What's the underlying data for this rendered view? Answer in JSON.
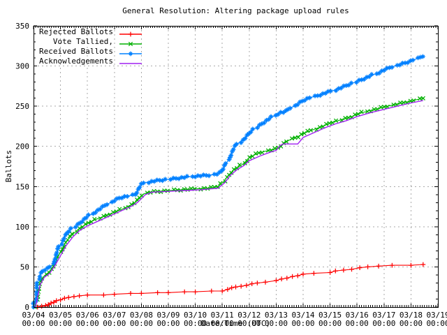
{
  "title": "General Resolution: Altering package upload rules",
  "axes": {
    "y_label": "Ballots",
    "x_label": "Date/Time (UTC)",
    "y_ticks": [
      0,
      50,
      100,
      150,
      200,
      250,
      300,
      350
    ],
    "y_max": 350,
    "x_days": 15,
    "x_tick_dates": [
      "03/04",
      "03/05",
      "03/06",
      "03/07",
      "03/08",
      "03/09",
      "03/10",
      "03/11",
      "03/12",
      "03/13",
      "03/14",
      "03/15",
      "03/16",
      "03/17",
      "03/18",
      "03/19"
    ],
    "x_tick_time": "00:00"
  },
  "colors": {
    "background": "#ffffff",
    "border": "#000000",
    "grid": "#aaaaaa",
    "text": "#000000",
    "rejected": "#ff0000",
    "tallied": "#00b000",
    "received": "#0080ff",
    "acknowledgements": "#a020f0"
  },
  "legend": {
    "items": [
      {
        "label": "Rejected Ballots",
        "marker": "plus",
        "color": "#ff0000"
      },
      {
        "label": "Vote Tallied,",
        "marker": "cross",
        "color": "#00b000"
      },
      {
        "label": "Received Ballots",
        "marker": "asterisk",
        "color": "#0080ff"
      },
      {
        "label": "Acknowledgements",
        "marker": "none",
        "color": "#a020f0"
      }
    ]
  },
  "chart_data": {
    "type": "line",
    "title": "General Resolution: Altering package upload rules",
    "xlabel": "Date/Time (UTC)",
    "ylabel": "Ballots",
    "x_unit": "days since 03/04 00:00 UTC",
    "x_range_dates": [
      "03/04",
      "03/19"
    ],
    "ylim": [
      0,
      350
    ],
    "grid": true,
    "legend_position": "top-left",
    "series": [
      {
        "name": "Rejected Ballots",
        "color": "#ff0000",
        "marker": "plus",
        "final_value": 53,
        "points": [
          [
            0.15,
            0
          ],
          [
            0.3,
            1
          ],
          [
            0.45,
            2
          ],
          [
            0.55,
            3
          ],
          [
            0.65,
            5
          ],
          [
            0.75,
            6
          ],
          [
            0.85,
            8
          ],
          [
            1.0,
            9
          ],
          [
            1.15,
            11
          ],
          [
            1.3,
            12
          ],
          [
            1.5,
            13
          ],
          [
            1.7,
            14
          ],
          [
            2.0,
            15
          ],
          [
            2.6,
            15
          ],
          [
            3.0,
            16
          ],
          [
            3.6,
            17
          ],
          [
            4.0,
            17
          ],
          [
            4.6,
            18
          ],
          [
            5.0,
            18
          ],
          [
            5.6,
            19
          ],
          [
            6.0,
            19
          ],
          [
            6.6,
            20
          ],
          [
            7.0,
            20
          ],
          [
            7.2,
            22
          ],
          [
            7.35,
            24
          ],
          [
            7.5,
            25
          ],
          [
            7.7,
            26
          ],
          [
            7.9,
            27
          ],
          [
            8.1,
            29
          ],
          [
            8.3,
            30
          ],
          [
            8.6,
            31
          ],
          [
            9.0,
            33
          ],
          [
            9.2,
            35
          ],
          [
            9.4,
            36
          ],
          [
            9.6,
            38
          ],
          [
            9.8,
            39
          ],
          [
            10.0,
            41
          ],
          [
            10.4,
            42
          ],
          [
            11.0,
            43
          ],
          [
            11.2,
            45
          ],
          [
            11.5,
            46
          ],
          [
            11.8,
            47
          ],
          [
            12.1,
            49
          ],
          [
            12.4,
            50
          ],
          [
            12.8,
            51
          ],
          [
            13.3,
            52
          ],
          [
            14.0,
            52
          ],
          [
            14.45,
            53
          ]
        ]
      },
      {
        "name": "Vote Tallied,",
        "color": "#00b000",
        "marker": "cross",
        "final_value": 260,
        "points": [
          [
            0.05,
            0
          ],
          [
            0.1,
            8
          ],
          [
            0.18,
            20
          ],
          [
            0.28,
            32
          ],
          [
            0.4,
            39
          ],
          [
            0.55,
            43
          ],
          [
            0.7,
            48
          ],
          [
            0.85,
            58
          ],
          [
            1.0,
            69
          ],
          [
            1.15,
            78
          ],
          [
            1.3,
            85
          ],
          [
            1.5,
            92
          ],
          [
            1.7,
            98
          ],
          [
            2.0,
            104
          ],
          [
            2.3,
            109
          ],
          [
            2.7,
            114
          ],
          [
            3.0,
            118
          ],
          [
            3.3,
            122
          ],
          [
            3.6,
            127
          ],
          [
            3.8,
            131
          ],
          [
            3.95,
            136
          ],
          [
            4.1,
            141
          ],
          [
            4.3,
            143
          ],
          [
            4.7,
            144
          ],
          [
            5.0,
            145
          ],
          [
            5.5,
            146
          ],
          [
            6.0,
            147
          ],
          [
            6.5,
            148
          ],
          [
            6.85,
            150
          ],
          [
            7.05,
            156
          ],
          [
            7.2,
            163
          ],
          [
            7.4,
            170
          ],
          [
            7.6,
            174
          ],
          [
            7.8,
            179
          ],
          [
            8.0,
            186
          ],
          [
            8.3,
            191
          ],
          [
            8.6,
            194
          ],
          [
            9.0,
            197
          ],
          [
            9.2,
            201
          ],
          [
            9.4,
            206
          ],
          [
            9.6,
            210
          ],
          [
            9.8,
            212
          ],
          [
            10.0,
            216
          ],
          [
            10.4,
            221
          ],
          [
            10.8,
            226
          ],
          [
            11.0,
            229
          ],
          [
            11.4,
            233
          ],
          [
            11.8,
            237
          ],
          [
            12.0,
            240
          ],
          [
            12.4,
            244
          ],
          [
            12.8,
            247
          ],
          [
            13.0,
            249
          ],
          [
            13.4,
            252
          ],
          [
            13.8,
            255
          ],
          [
            14.0,
            256
          ],
          [
            14.2,
            258
          ],
          [
            14.45,
            260
          ]
        ]
      },
      {
        "name": "Received Ballots",
        "color": "#0080ff",
        "marker": "asterisk",
        "final_value": 313,
        "points": [
          [
            0,
            0
          ],
          [
            0.05,
            6
          ],
          [
            0.1,
            16
          ],
          [
            0.15,
            28
          ],
          [
            0.2,
            38
          ],
          [
            0.3,
            44
          ],
          [
            0.45,
            47
          ],
          [
            0.6,
            49
          ],
          [
            0.7,
            53
          ],
          [
            0.8,
            62
          ],
          [
            0.9,
            70
          ],
          [
            1.0,
            78
          ],
          [
            1.1,
            85
          ],
          [
            1.25,
            92
          ],
          [
            1.4,
            97
          ],
          [
            1.6,
            102
          ],
          [
            1.8,
            107
          ],
          [
            2.0,
            112
          ],
          [
            2.2,
            117
          ],
          [
            2.4,
            121
          ],
          [
            2.7,
            127
          ],
          [
            3.0,
            133
          ],
          [
            3.2,
            136
          ],
          [
            3.5,
            138
          ],
          [
            3.75,
            140
          ],
          [
            3.9,
            147
          ],
          [
            4.0,
            152
          ],
          [
            4.15,
            155
          ],
          [
            4.5,
            157
          ],
          [
            5.0,
            159
          ],
          [
            5.5,
            161
          ],
          [
            6.0,
            163
          ],
          [
            6.5,
            164
          ],
          [
            6.85,
            166
          ],
          [
            7.0,
            170
          ],
          [
            7.15,
            178
          ],
          [
            7.3,
            189
          ],
          [
            7.45,
            198
          ],
          [
            7.6,
            204
          ],
          [
            7.8,
            209
          ],
          [
            8.0,
            216
          ],
          [
            8.2,
            222
          ],
          [
            8.4,
            227
          ],
          [
            8.6,
            231
          ],
          [
            8.8,
            235
          ],
          [
            9.0,
            240
          ],
          [
            9.15,
            242
          ],
          [
            9.35,
            243
          ],
          [
            9.5,
            247
          ],
          [
            9.75,
            252
          ],
          [
            10.0,
            257
          ],
          [
            10.3,
            261
          ],
          [
            10.7,
            265
          ],
          [
            11.0,
            268
          ],
          [
            11.4,
            273
          ],
          [
            11.8,
            278
          ],
          [
            12.0,
            281
          ],
          [
            12.4,
            286
          ],
          [
            12.8,
            292
          ],
          [
            13.0,
            295
          ],
          [
            13.4,
            300
          ],
          [
            13.8,
            304
          ],
          [
            14.0,
            306
          ],
          [
            14.2,
            309
          ],
          [
            14.45,
            313
          ]
        ]
      },
      {
        "name": "Acknowledgements",
        "color": "#a020f0",
        "marker": "none",
        "final_value": 257,
        "points": [
          [
            0.07,
            0
          ],
          [
            0.15,
            12
          ],
          [
            0.25,
            28
          ],
          [
            0.4,
            37
          ],
          [
            0.6,
            42
          ],
          [
            0.8,
            52
          ],
          [
            1.0,
            64
          ],
          [
            1.2,
            76
          ],
          [
            1.45,
            87
          ],
          [
            1.7,
            95
          ],
          [
            2.0,
            101
          ],
          [
            2.4,
            107
          ],
          [
            2.8,
            113
          ],
          [
            3.2,
            119
          ],
          [
            3.6,
            125
          ],
          [
            3.85,
            130
          ],
          [
            4.0,
            135
          ],
          [
            4.15,
            140
          ],
          [
            4.4,
            143
          ],
          [
            5.0,
            144
          ],
          [
            5.6,
            145
          ],
          [
            6.2,
            146
          ],
          [
            6.85,
            148
          ],
          [
            7.1,
            155
          ],
          [
            7.3,
            164
          ],
          [
            7.55,
            171
          ],
          [
            7.8,
            176
          ],
          [
            8.0,
            182
          ],
          [
            8.4,
            188
          ],
          [
            8.8,
            193
          ],
          [
            9.0,
            195
          ],
          [
            9.15,
            201
          ],
          [
            9.25,
            203
          ],
          [
            9.8,
            203
          ],
          [
            10.0,
            211
          ],
          [
            10.4,
            217
          ],
          [
            10.8,
            223
          ],
          [
            11.2,
            228
          ],
          [
            11.6,
            232
          ],
          [
            12.0,
            237
          ],
          [
            12.5,
            242
          ],
          [
            13.0,
            246
          ],
          [
            13.5,
            250
          ],
          [
            14.0,
            254
          ],
          [
            14.45,
            257
          ]
        ]
      }
    ]
  }
}
